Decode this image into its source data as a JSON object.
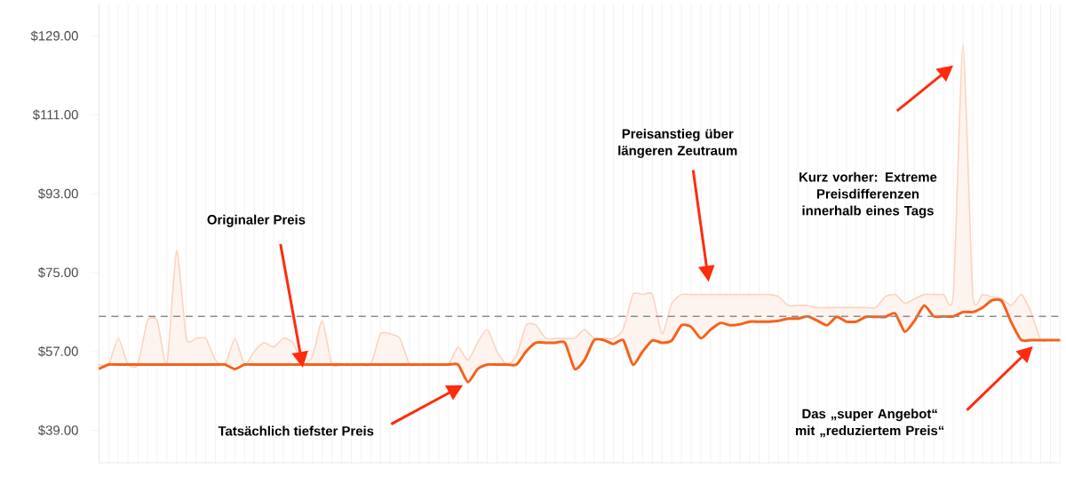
{
  "chart_data": {
    "type": "line",
    "categories": [
      null,
      null,
      null,
      null,
      null,
      null,
      null,
      null,
      null,
      null,
      null,
      null,
      null,
      null,
      null,
      null,
      null,
      null,
      null,
      null,
      null,
      null,
      null,
      null,
      null,
      null,
      null,
      null,
      null,
      null,
      null,
      null,
      null,
      null,
      null,
      null,
      null,
      null,
      null,
      null,
      null,
      null,
      null,
      null,
      null,
      null,
      null,
      null,
      null,
      null,
      null,
      null,
      null,
      null,
      null,
      null,
      null,
      null,
      null,
      null,
      null,
      null,
      null,
      null,
      null,
      null,
      null,
      null,
      null,
      null,
      null,
      null,
      null,
      null,
      null,
      null,
      null,
      null,
      null,
      null,
      null,
      null,
      null,
      null,
      null,
      null,
      null,
      null,
      null,
      null,
      null,
      null,
      null,
      null,
      null,
      null,
      null,
      null,
      null,
      null
    ],
    "series": [
      {
        "color": "#f4621c",
        "values": [
          53,
          54,
          54,
          54,
          54,
          54,
          54,
          54,
          54,
          54,
          54,
          54,
          54,
          54,
          53,
          54,
          54,
          54,
          54,
          54,
          54,
          54,
          54,
          54,
          54,
          54,
          54,
          54,
          54,
          54,
          54,
          54,
          54,
          54,
          54,
          54,
          54,
          54,
          50,
          53,
          54,
          54,
          54,
          54,
          57,
          59,
          59,
          59,
          59,
          53,
          55,
          59.6,
          59.6,
          58.7,
          59.6,
          54,
          57,
          59.5,
          59,
          59.5,
          63,
          62.6,
          60,
          62,
          63.5,
          63,
          63.2,
          63.8,
          63.8,
          63.8,
          64,
          64.5,
          64.5,
          65,
          64,
          63,
          64.9,
          63.8,
          63.8,
          64.9,
          64.9,
          64.9,
          65.7,
          61.5,
          64,
          67.5,
          65,
          65,
          65,
          66,
          66,
          67,
          68.7,
          68.5,
          63.5,
          59.6,
          59.6,
          59.6,
          59.6,
          59.6
        ],
        "lower": [
          53,
          54,
          54,
          54,
          54,
          54,
          54,
          54,
          54,
          54,
          54,
          54,
          54,
          54,
          53,
          54,
          54,
          54,
          54,
          54,
          54,
          54,
          54,
          54,
          54,
          54,
          54,
          54,
          54,
          54,
          54,
          54,
          54,
          54,
          54,
          54,
          54,
          54,
          50,
          53,
          54,
          54,
          54,
          54,
          57,
          59,
          59,
          59,
          59,
          53,
          55,
          59.6,
          59.6,
          58.7,
          59.6,
          54,
          57,
          59.5,
          59,
          59.5,
          63,
          62.6,
          60,
          62,
          63.5,
          63,
          63.2,
          63.8,
          63.8,
          63.8,
          64,
          64.5,
          64.5,
          65,
          64,
          63,
          64.9,
          63.8,
          63.8,
          64.9,
          64.9,
          64.9,
          65.7,
          61.5,
          64,
          67.5,
          65,
          65,
          65,
          66,
          66,
          67,
          68.7,
          68.5,
          63.5,
          59.6,
          59.6,
          59.6,
          59.6,
          59.6
        ],
        "upper": [
          54,
          54,
          60,
          54,
          54,
          64,
          64,
          54,
          80,
          60,
          60,
          60,
          55,
          54,
          60,
          54,
          57,
          59,
          58,
          60,
          59,
          54,
          56,
          64,
          54,
          54,
          54,
          54,
          54,
          61,
          61,
          60,
          54,
          54,
          54,
          54,
          54,
          58,
          55,
          59,
          62,
          57,
          54,
          56,
          63,
          63,
          60,
          60,
          60,
          60,
          62,
          60,
          60,
          60,
          62,
          70,
          70,
          70,
          61,
          68,
          70,
          70,
          70,
          70,
          70,
          70,
          70,
          70,
          70,
          70,
          69.5,
          67.5,
          67.5,
          67.5,
          67,
          67,
          67,
          67,
          67,
          67,
          67,
          69.5,
          70,
          68,
          69,
          70,
          70,
          70,
          70,
          127,
          70,
          70,
          69.5,
          69,
          67.5,
          70,
          66,
          59.6,
          59.6,
          59.6
        ]
      }
    ],
    "ylim": [
      31.6,
      136.4
    ],
    "yticks": [
      {
        "value": 39,
        "label": "$39.00"
      },
      {
        "value": 57,
        "label": "$57.00"
      },
      {
        "value": 75,
        "label": "$75.00"
      },
      {
        "value": 93,
        "label": "$93.00"
      },
      {
        "value": 111,
        "label": "$111.00"
      },
      {
        "value": 129,
        "label": "$129.00"
      }
    ],
    "grid": "x",
    "ref_lines": [
      {
        "axis": "y",
        "value": 65,
        "color": "#8c8c8c",
        "line_style": "dashed"
      }
    ],
    "annotations": [
      "Originaler Preis",
      "Tatsächlich tiefster Preis",
      "Preisanstieg über längeren Zeutraum",
      "Kurz vorher: Extreme Preisdifferenzen innerhalb eines Tags",
      "Das „super Angebot“ mit „reduziertem Preis“"
    ]
  }
}
